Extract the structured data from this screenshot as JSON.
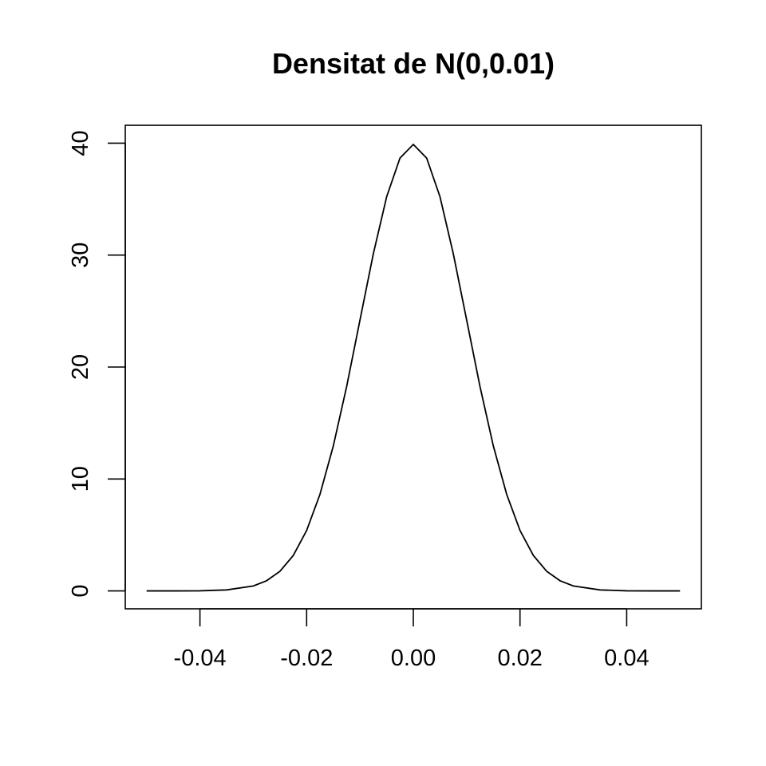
{
  "chart_data": {
    "type": "line",
    "title": "Densitat de N(0,0.01)",
    "xlabel": "",
    "ylabel": "",
    "xlim": [
      -0.054,
      0.054
    ],
    "ylim": [
      -1.6,
      41.6
    ],
    "x_ticks": [
      -0.04,
      -0.02,
      0.0,
      0.02,
      0.04
    ],
    "x_tick_labels": [
      "-0.04",
      "-0.02",
      "0.00",
      "0.02",
      "0.04"
    ],
    "y_ticks": [
      0,
      10,
      20,
      30,
      40
    ],
    "y_tick_labels": [
      "0",
      "10",
      "20",
      "30",
      "40"
    ],
    "grid": false,
    "legend": "none",
    "line_color": "#000000",
    "series": [
      {
        "x": [
          -0.05,
          -0.045,
          -0.04,
          -0.035,
          -0.03,
          -0.0275,
          -0.025,
          -0.0225,
          -0.02,
          -0.0175,
          -0.015,
          -0.0125,
          -0.01,
          -0.0075,
          -0.005,
          -0.0025,
          0.0,
          0.0025,
          0.005,
          0.0075,
          0.01,
          0.0125,
          0.015,
          0.0175,
          0.02,
          0.0225,
          0.025,
          0.0275,
          0.03,
          0.035,
          0.04,
          0.045,
          0.05
        ],
        "values": [
          0.0,
          0.0,
          0.01,
          0.09,
          0.44,
          0.91,
          1.75,
          3.17,
          5.4,
          8.63,
          12.95,
          18.26,
          24.2,
          30.11,
          35.21,
          38.67,
          39.89,
          38.67,
          35.21,
          30.11,
          24.2,
          18.26,
          12.95,
          8.63,
          5.4,
          3.17,
          1.75,
          0.91,
          0.44,
          0.09,
          0.01,
          0.0,
          0.0
        ]
      }
    ]
  }
}
